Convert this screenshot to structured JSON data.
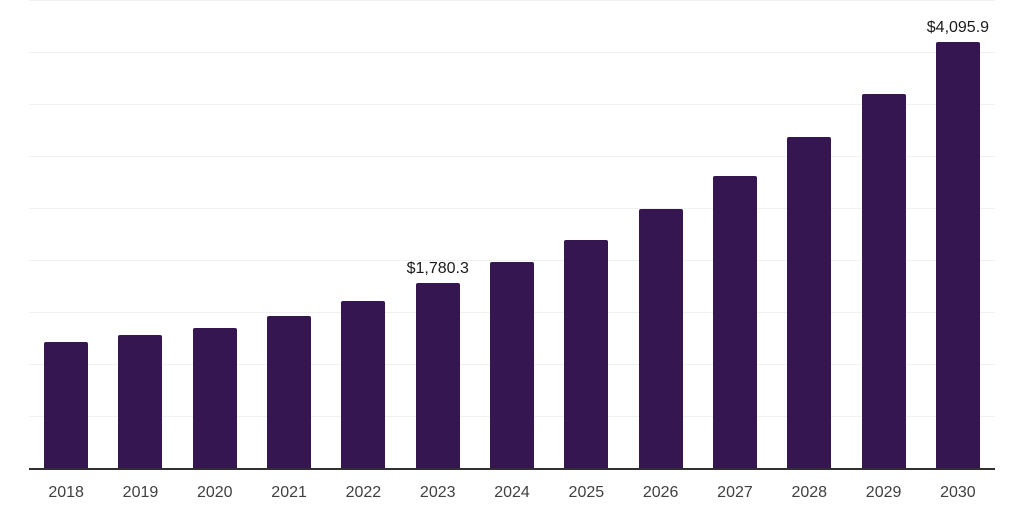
{
  "chart_data": {
    "type": "bar",
    "title": "",
    "xlabel": "",
    "ylabel": "",
    "categories": [
      "2018",
      "2019",
      "2020",
      "2021",
      "2022",
      "2023",
      "2024",
      "2025",
      "2026",
      "2027",
      "2028",
      "2029",
      "2030"
    ],
    "values": [
      1210,
      1275,
      1345,
      1460,
      1610,
      1780.3,
      1985,
      2190,
      2490,
      2805,
      3180,
      3600,
      4095.9
    ],
    "bar_labels": [
      "",
      "",
      "",
      "",
      "",
      "$1,780.3",
      "",
      "",
      "",
      "",
      "",
      "",
      "$4,095.9"
    ],
    "ylim": [
      0,
      4500
    ],
    "gridline_step": 500,
    "grid": "horizontal-only",
    "y_tick_labels_visible": false,
    "legend_position": "none",
    "colors": {
      "bar": "#351650",
      "gridline": "#f0f0f0",
      "axis_line": "#303030",
      "value_label_text": "#1a1a1a",
      "tick_label_text": "#404040",
      "background": "#ffffff"
    }
  }
}
